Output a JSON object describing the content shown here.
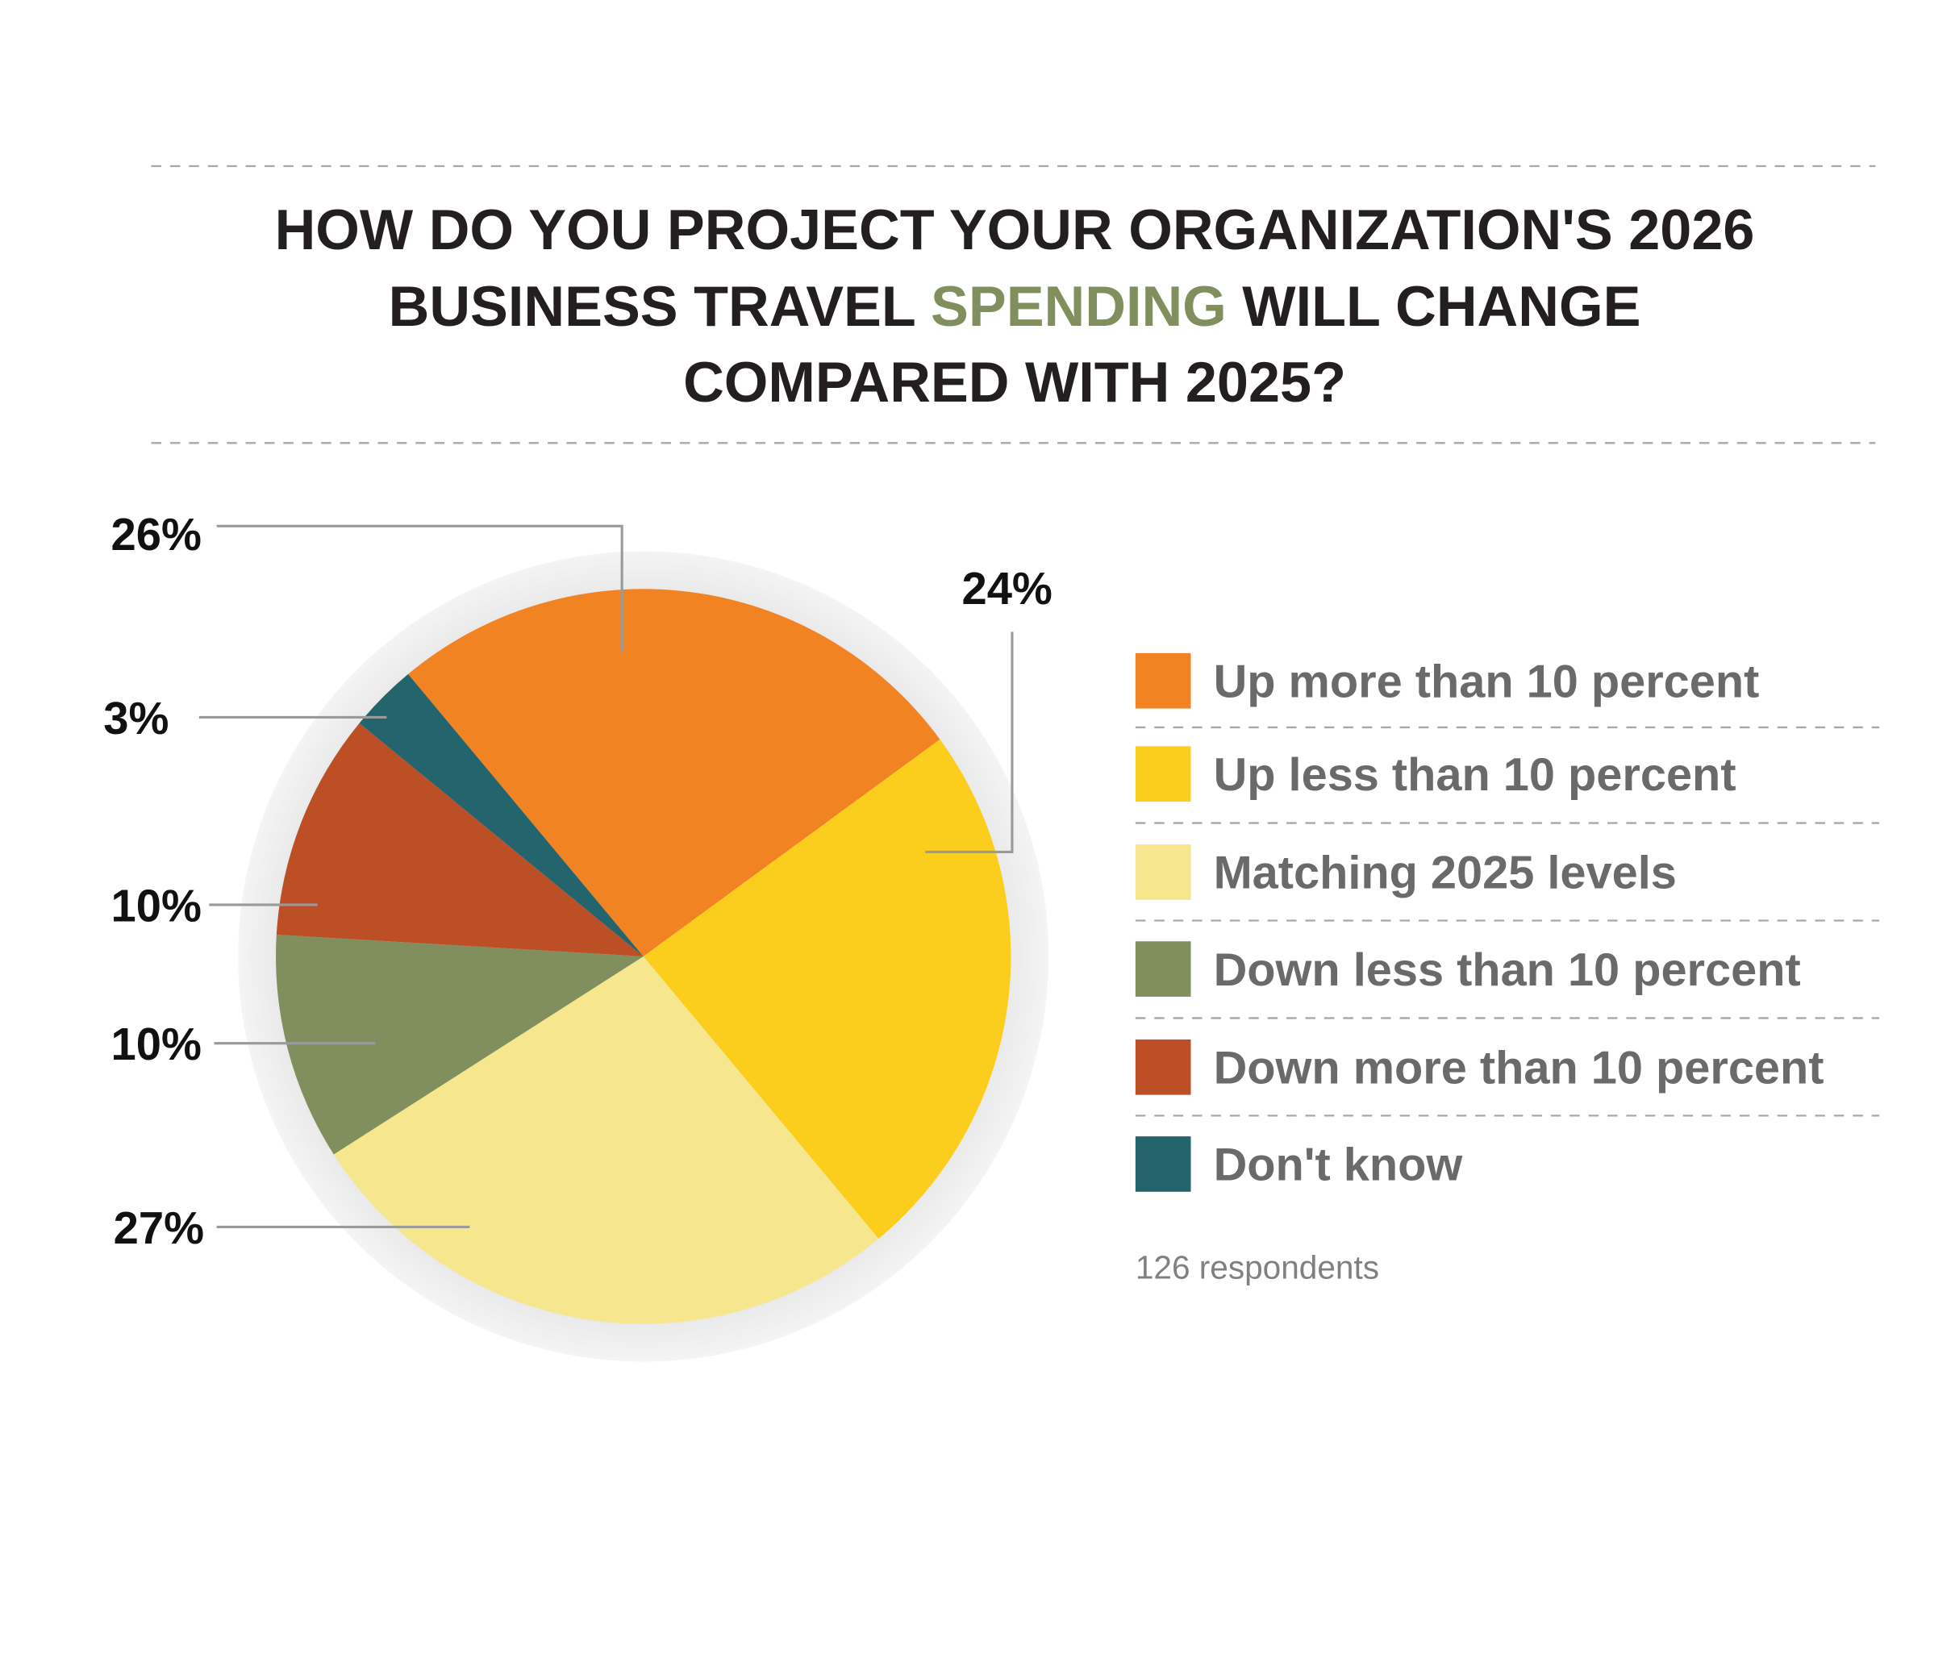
{
  "chart_data": {
    "type": "pie",
    "title_lines": [
      [
        "HOW DO YOU PROJECT YOUR ORGANIZATION'S 2026"
      ],
      [
        "BUSINESS TRAVEL ",
        "SPENDING",
        " WILL CHANGE"
      ],
      [
        "COMPARED WITH 2025?"
      ]
    ],
    "categories": [
      "Up more than 10 percent",
      "Up less than 10 percent",
      "Matching 2025 levels",
      "Down less than 10 percent",
      "Down more than 10 percent",
      "Don't know"
    ],
    "values": [
      26,
      24,
      27,
      10,
      10,
      3
    ],
    "value_labels": [
      "26%",
      "24%",
      "27%",
      "10%",
      "10%",
      "3%"
    ],
    "colors": [
      "#f28322",
      "#fbcd1d",
      "#f6e68e",
      "#818f5e",
      "#bc4f26",
      "#24646d"
    ],
    "note": "126 respondents"
  }
}
